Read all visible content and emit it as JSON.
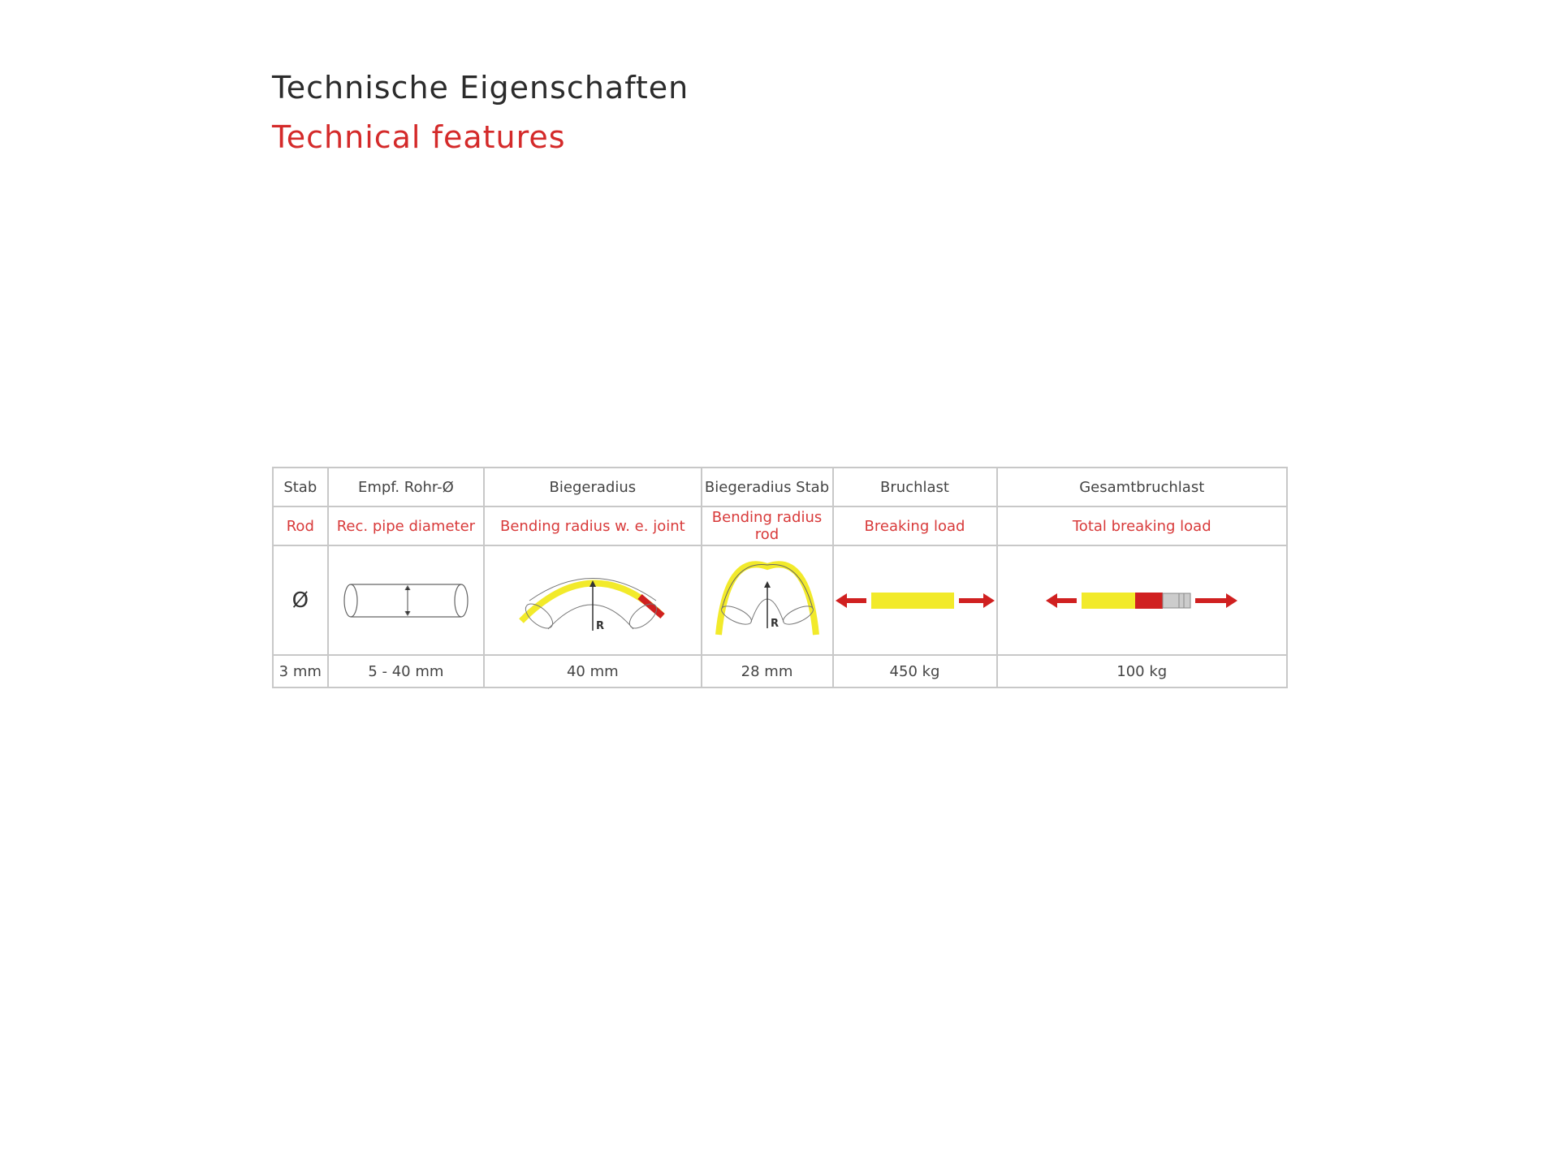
{
  "title_de": "Technische Eigenschaften",
  "title_en": "Technical features",
  "colors": {
    "accent": "#d42a2a",
    "yellow": "#f2ea2a",
    "grid": "#c8c8c8"
  },
  "table": {
    "columns": [
      {
        "de": "Stab",
        "en": "Rod",
        "icon": "diameter-symbol",
        "value": "3 mm"
      },
      {
        "de": "Empf. Rohr-Ø",
        "en": "Rec. pipe diameter",
        "icon": "pipe-icon",
        "value": "5 - 40 mm"
      },
      {
        "de": "Biegeradius",
        "en": "Bending radius w. e. joint",
        "icon": "bend-with-joint-icon",
        "value": "40 mm"
      },
      {
        "de": "Biegeradius Stab",
        "en": "Bending radius rod",
        "icon": "bend-rod-icon",
        "value": "28 mm"
      },
      {
        "de": "Bruchlast",
        "en": "Breaking load",
        "icon": "breaking-load-icon",
        "value": "450 kg"
      },
      {
        "de": "Gesamtbruchlast",
        "en": "Total breaking load",
        "icon": "total-breaking-load-icon",
        "value": "100 kg"
      }
    ],
    "diameter_symbol": "Ø",
    "radius_label": "R"
  }
}
